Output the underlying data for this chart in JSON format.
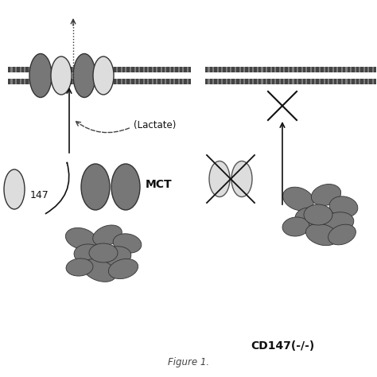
{
  "background_color": "#ffffff",
  "dark_gray": "#777777",
  "light_gray": "#dddddd",
  "text_color": "#111111",
  "figure_label": "Figure 1.",
  "label_lactate": "(Lactate)",
  "label_mct": "MCT",
  "label_cd147_ko": "CD147(-/-)"
}
